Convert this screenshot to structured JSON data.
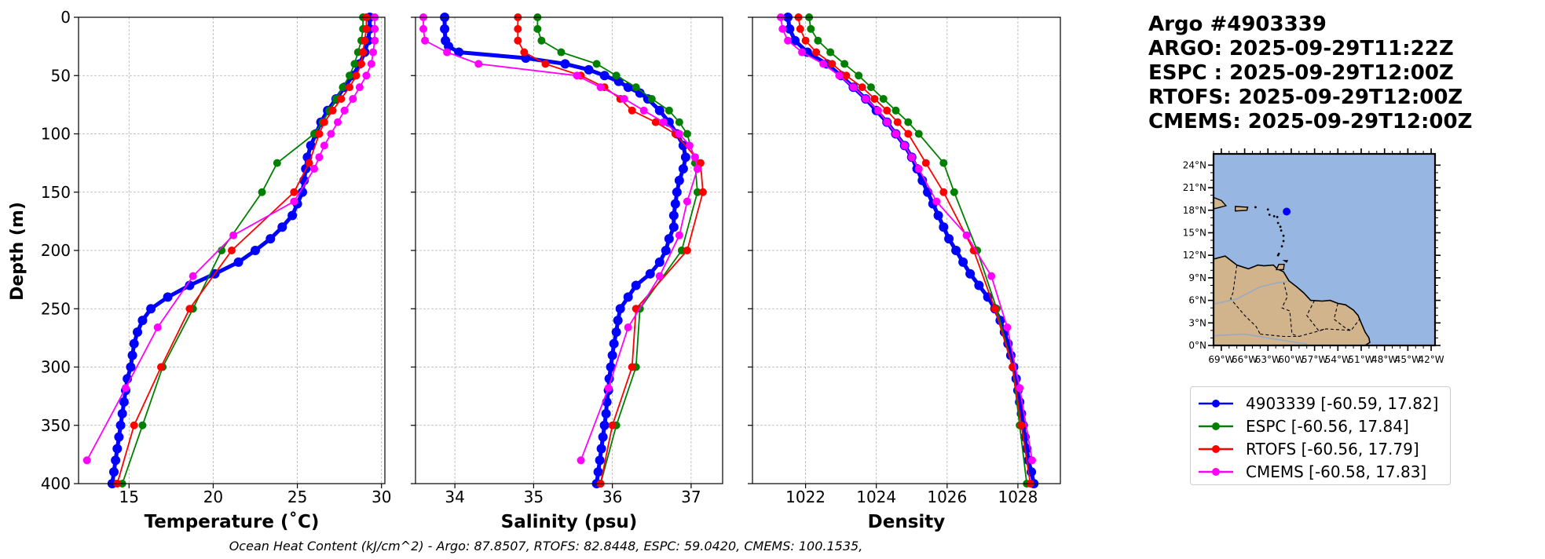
{
  "info": {
    "title_lines": [
      "Argo #4903339",
      "ARGO: 2025-09-29T11:22Z",
      "ESPC : 2025-09-29T12:00Z",
      "RTOFS: 2025-09-29T12:00Z",
      "CMEMS: 2025-09-29T12:00Z"
    ]
  },
  "footer": {
    "ohc_text": "Ocean Heat Content (kJ/cm^2) - Argo: 87.8507,  RTOFS: 82.8448,  ESPC: 59.0420,  CMEMS: 100.1535,"
  },
  "legend": {
    "items": [
      {
        "label": "4903339 [-60.59, 17.82]",
        "color": "#0000ff"
      },
      {
        "label": "ESPC [-60.56, 17.84]",
        "color": "#008000"
      },
      {
        "label": "RTOFS [-60.56, 17.79]",
        "color": "#ff0000"
      },
      {
        "label": "CMEMS [-60.58, 17.83]",
        "color": "#ff00ff"
      }
    ]
  },
  "colors": {
    "argo": "#0000ff",
    "espc": "#008000",
    "rtofs": "#ff0000",
    "cmems": "#ff00ff",
    "ocean": "#97b6e1",
    "land": "#d2b48c",
    "grid": "#b0b0b0"
  },
  "chart_data": [
    {
      "type": "line",
      "id": "temperature",
      "xlabel": "Temperature (˚C)",
      "ylabel": "Depth (m)",
      "xlim": [
        12,
        30.2
      ],
      "ylim": [
        400,
        0
      ],
      "xticks": [
        15,
        20,
        25,
        30
      ],
      "yticks": [
        0,
        50,
        100,
        150,
        200,
        250,
        300,
        350,
        400
      ],
      "grid": true,
      "series": [
        {
          "name": "4903339",
          "key": "argo",
          "marker_size": 6,
          "line_width": 5,
          "depth": [
            0,
            10,
            20,
            30,
            40,
            50,
            60,
            70,
            80,
            90,
            100,
            110,
            120,
            130,
            140,
            150,
            160,
            170,
            180,
            190,
            200,
            210,
            220,
            230,
            240,
            250,
            260,
            270,
            280,
            290,
            300,
            310,
            320,
            330,
            340,
            350,
            360,
            370,
            380,
            390,
            400
          ],
          "values": [
            29.3,
            29.3,
            29.2,
            29.0,
            28.7,
            28.3,
            27.8,
            27.3,
            26.8,
            26.4,
            26.1,
            25.8,
            25.6,
            25.5,
            25.4,
            25.3,
            25.0,
            24.7,
            24.1,
            23.4,
            22.5,
            21.5,
            20.1,
            18.6,
            17.3,
            16.3,
            15.8,
            15.5,
            15.3,
            15.2,
            15.1,
            14.9,
            14.8,
            14.7,
            14.6,
            14.5,
            14.4,
            14.3,
            14.2,
            14.1,
            14.0
          ]
        },
        {
          "name": "ESPC",
          "key": "espc",
          "marker_size": 5,
          "line_width": 1.8,
          "depth": [
            0,
            10,
            20,
            30,
            40,
            50,
            60,
            70,
            80,
            90,
            100,
            125,
            150,
            200,
            250,
            300,
            350,
            400
          ],
          "values": [
            28.9,
            28.9,
            28.8,
            28.6,
            28.4,
            28.1,
            27.7,
            27.3,
            26.9,
            26.5,
            26.0,
            23.8,
            22.9,
            20.5,
            18.8,
            17.0,
            15.8,
            14.6
          ]
        },
        {
          "name": "RTOFS",
          "key": "rtofs",
          "marker_size": 5,
          "line_width": 1.8,
          "depth": [
            0,
            10,
            20,
            30,
            40,
            50,
            60,
            70,
            80,
            90,
            100,
            125,
            150,
            200,
            250,
            300,
            350,
            400
          ],
          "values": [
            29.1,
            29.1,
            29.0,
            28.9,
            28.8,
            28.5,
            28.1,
            27.6,
            27.1,
            26.6,
            26.3,
            25.7,
            24.8,
            21.1,
            18.6,
            16.9,
            15.3,
            14.3
          ]
        },
        {
          "name": "CMEMS",
          "key": "cmems",
          "marker_size": 5,
          "line_width": 1.8,
          "depth": [
            0,
            10,
            20,
            30,
            40,
            50,
            60,
            70,
            80,
            90,
            100,
            110,
            120,
            130,
            158,
            187,
            222,
            266,
            318,
            380
          ],
          "values": [
            29.6,
            29.6,
            29.6,
            29.5,
            29.4,
            29.1,
            28.7,
            28.3,
            27.8,
            27.4,
            27.0,
            26.6,
            26.3,
            26.0,
            24.8,
            21.2,
            18.8,
            16.7,
            14.8,
            12.5
          ]
        }
      ]
    },
    {
      "type": "line",
      "id": "salinity",
      "xlabel": "Salinity (psu)",
      "ylabel": "",
      "xlim": [
        33.5,
        37.4
      ],
      "ylim": [
        400,
        0
      ],
      "xticks": [
        34,
        35,
        36,
        37
      ],
      "yticks": [
        0,
        50,
        100,
        150,
        200,
        250,
        300,
        350,
        400
      ],
      "grid": true,
      "series": [
        {
          "name": "4903339",
          "key": "argo",
          "marker_size": 6,
          "line_width": 5,
          "depth": [
            0,
            10,
            20,
            25,
            30,
            35,
            40,
            45,
            50,
            55,
            60,
            65,
            70,
            80,
            90,
            100,
            110,
            120,
            130,
            140,
            150,
            160,
            170,
            180,
            190,
            200,
            210,
            220,
            230,
            240,
            250,
            260,
            270,
            280,
            290,
            300,
            310,
            320,
            330,
            340,
            350,
            360,
            370,
            380,
            390,
            400
          ],
          "values": [
            33.87,
            33.87,
            33.88,
            33.92,
            34.05,
            34.9,
            35.4,
            35.7,
            35.9,
            36.08,
            36.2,
            36.35,
            36.45,
            36.6,
            36.72,
            36.82,
            36.9,
            36.93,
            36.9,
            36.85,
            36.82,
            36.8,
            36.78,
            36.78,
            36.72,
            36.68,
            36.6,
            36.48,
            36.3,
            36.2,
            36.1,
            36.07,
            36.05,
            36.02,
            36.0,
            35.98,
            35.96,
            35.95,
            35.93,
            35.92,
            35.9,
            35.88,
            35.86,
            35.84,
            35.82,
            35.8
          ]
        },
        {
          "name": "ESPC",
          "key": "espc",
          "marker_size": 5,
          "line_width": 1.8,
          "depth": [
            0,
            10,
            20,
            30,
            40,
            50,
            60,
            70,
            80,
            90,
            100,
            125,
            150,
            200,
            250,
            300,
            350,
            400
          ],
          "values": [
            35.05,
            35.05,
            35.1,
            35.35,
            35.8,
            36.05,
            36.3,
            36.5,
            36.72,
            36.85,
            36.95,
            37.05,
            37.08,
            36.88,
            36.35,
            36.3,
            36.05,
            35.85
          ]
        },
        {
          "name": "RTOFS",
          "key": "rtofs",
          "marker_size": 5,
          "line_width": 1.8,
          "depth": [
            0,
            10,
            20,
            30,
            40,
            50,
            60,
            70,
            80,
            90,
            100,
            125,
            150,
            200,
            250,
            300,
            350,
            400
          ],
          "values": [
            34.8,
            34.8,
            34.8,
            34.88,
            35.15,
            35.6,
            35.9,
            36.1,
            36.25,
            36.55,
            36.8,
            37.12,
            37.15,
            36.95,
            36.3,
            36.25,
            36.0,
            35.85
          ]
        },
        {
          "name": "CMEMS",
          "key": "cmems",
          "marker_size": 5,
          "line_width": 1.8,
          "depth": [
            0,
            10,
            20,
            30,
            40,
            50,
            60,
            70,
            80,
            90,
            100,
            110,
            120,
            130,
            158,
            187,
            222,
            266,
            318,
            380
          ],
          "values": [
            33.6,
            33.6,
            33.62,
            33.9,
            34.3,
            35.55,
            35.85,
            36.15,
            36.4,
            36.65,
            36.85,
            36.98,
            37.05,
            37.08,
            36.95,
            36.85,
            36.6,
            36.2,
            35.95,
            35.6
          ]
        }
      ]
    },
    {
      "type": "line",
      "id": "density",
      "xlabel": "Density",
      "ylabel": "",
      "xlim": [
        1020.5,
        1029.2
      ],
      "ylim": [
        400,
        0
      ],
      "xticks": [
        1022,
        1024,
        1026,
        1028
      ],
      "yticks": [
        0,
        50,
        100,
        150,
        200,
        250,
        300,
        350,
        400
      ],
      "grid": true,
      "series": [
        {
          "name": "4903339",
          "key": "argo",
          "marker_size": 6,
          "line_width": 5,
          "depth": [
            0,
            10,
            20,
            30,
            40,
            50,
            60,
            70,
            80,
            90,
            100,
            110,
            120,
            130,
            140,
            150,
            160,
            170,
            180,
            190,
            200,
            210,
            220,
            230,
            240,
            250,
            260,
            270,
            280,
            290,
            300,
            310,
            320,
            330,
            340,
            350,
            360,
            370,
            380,
            390,
            400
          ],
          "values": [
            1021.5,
            1021.55,
            1021.7,
            1022.05,
            1022.6,
            1023.0,
            1023.35,
            1023.7,
            1024.0,
            1024.3,
            1024.55,
            1024.8,
            1025.0,
            1025.15,
            1025.3,
            1025.45,
            1025.6,
            1025.75,
            1025.9,
            1026.05,
            1026.25,
            1026.45,
            1026.65,
            1026.9,
            1027.15,
            1027.35,
            1027.5,
            1027.62,
            1027.72,
            1027.8,
            1027.88,
            1027.95,
            1028.0,
            1028.05,
            1028.1,
            1028.15,
            1028.2,
            1028.25,
            1028.3,
            1028.38,
            1028.45
          ]
        },
        {
          "name": "ESPC",
          "key": "espc",
          "marker_size": 5,
          "line_width": 1.8,
          "depth": [
            0,
            10,
            20,
            30,
            40,
            50,
            60,
            70,
            80,
            90,
            100,
            125,
            150,
            200,
            250,
            300,
            350,
            400
          ],
          "values": [
            1022.1,
            1022.15,
            1022.35,
            1022.7,
            1023.1,
            1023.5,
            1023.85,
            1024.2,
            1024.55,
            1024.9,
            1025.2,
            1025.9,
            1026.2,
            1026.85,
            1027.4,
            1027.85,
            1028.05,
            1028.25
          ]
        },
        {
          "name": "RTOFS",
          "key": "rtofs",
          "marker_size": 5,
          "line_width": 1.8,
          "depth": [
            0,
            10,
            20,
            30,
            40,
            50,
            60,
            70,
            80,
            90,
            100,
            125,
            150,
            200,
            250,
            300,
            350,
            400
          ],
          "values": [
            1021.8,
            1021.85,
            1022.0,
            1022.3,
            1022.75,
            1023.15,
            1023.6,
            1023.95,
            1024.3,
            1024.6,
            1024.9,
            1025.4,
            1025.9,
            1026.75,
            1027.35,
            1027.85,
            1028.1,
            1028.35
          ]
        },
        {
          "name": "CMEMS",
          "key": "cmems",
          "marker_size": 5,
          "line_width": 1.8,
          "depth": [
            0,
            10,
            20,
            30,
            40,
            50,
            60,
            70,
            80,
            90,
            100,
            110,
            120,
            130,
            158,
            187,
            222,
            266,
            318,
            380
          ],
          "values": [
            1021.3,
            1021.35,
            1021.5,
            1021.9,
            1022.5,
            1022.95,
            1023.35,
            1023.7,
            1024.05,
            1024.3,
            1024.55,
            1024.8,
            1025.0,
            1025.2,
            1025.7,
            1026.55,
            1027.25,
            1027.7,
            1028.05,
            1028.4
          ]
        }
      ]
    }
  ],
  "map": {
    "lat_labels": [
      "24°N",
      "21°N",
      "18°N",
      "15°N",
      "12°N",
      "9°N",
      "6°N",
      "3°N",
      "0°N"
    ],
    "lat_values": [
      24,
      21,
      18,
      15,
      12,
      9,
      6,
      3,
      0
    ],
    "lon_labels": [
      "69°W",
      "66°W",
      "63°W",
      "60°W",
      "57°W",
      "54°W",
      "51°W",
      "48°W",
      "45°W",
      "42°W"
    ],
    "lon_values": [
      -69,
      -66,
      -63,
      -60,
      -57,
      -54,
      -51,
      -48,
      -45,
      -42
    ],
    "lon_range": [
      -70,
      -41.5
    ],
    "lat_range": [
      0,
      25.5
    ],
    "marker": {
      "lon": -60.59,
      "lat": 17.82
    },
    "coastline": [
      [
        -70,
        11.5
      ],
      [
        -68.5,
        11.9
      ],
      [
        -67,
        10.7
      ],
      [
        -65.5,
        10.2
      ],
      [
        -64.3,
        10.7
      ],
      [
        -63.5,
        10.6
      ],
      [
        -62.3,
        10.7
      ],
      [
        -61.8,
        10.2
      ],
      [
        -61.0,
        9.8
      ],
      [
        -60.3,
        8.6
      ],
      [
        -59.3,
        7.8
      ],
      [
        -58.4,
        7.0
      ],
      [
        -57.5,
        6.0
      ],
      [
        -56.0,
        5.9
      ],
      [
        -55.0,
        6.0
      ],
      [
        -54.0,
        5.6
      ],
      [
        -53.0,
        5.4
      ],
      [
        -52.0,
        4.7
      ],
      [
        -51.4,
        4.0
      ],
      [
        -51.0,
        3.0
      ],
      [
        -50.5,
        1.8
      ],
      [
        -50.0,
        1.0
      ],
      [
        -49.9,
        0.4
      ],
      [
        -50.5,
        0
      ]
    ],
    "islands": [
      [
        [
          -70,
          19.7
        ],
        [
          -69,
          19.3
        ],
        [
          -68.4,
          18.6
        ],
        [
          -69.5,
          18.3
        ],
        [
          -70,
          18.2
        ]
      ],
      [
        [
          -67.2,
          18.5
        ],
        [
          -65.6,
          18.4
        ],
        [
          -65.7,
          18.0
        ],
        [
          -67.2,
          17.9
        ]
      ],
      [
        [
          -61.6,
          10.8
        ],
        [
          -60.9,
          10.8
        ],
        [
          -61.0,
          10.1
        ],
        [
          -61.9,
          10.1
        ]
      ],
      [
        [
          -60.9,
          11.3
        ],
        [
          -60.5,
          11.3
        ],
        [
          -60.6,
          11.1
        ]
      ]
    ],
    "antilles": [
      [
        -64.6,
        18.4
      ],
      [
        -63.0,
        18.1
      ],
      [
        -62.8,
        17.4
      ],
      [
        -62.2,
        17.2
      ],
      [
        -61.8,
        17.1
      ],
      [
        -61.7,
        16.3
      ],
      [
        -61.4,
        15.8
      ],
      [
        -61.3,
        15.3
      ],
      [
        -61.0,
        14.6
      ],
      [
        -61.0,
        13.9
      ],
      [
        -61.2,
        13.2
      ],
      [
        -61.6,
        12.2
      ],
      [
        -61.7,
        12.0
      ]
    ]
  }
}
